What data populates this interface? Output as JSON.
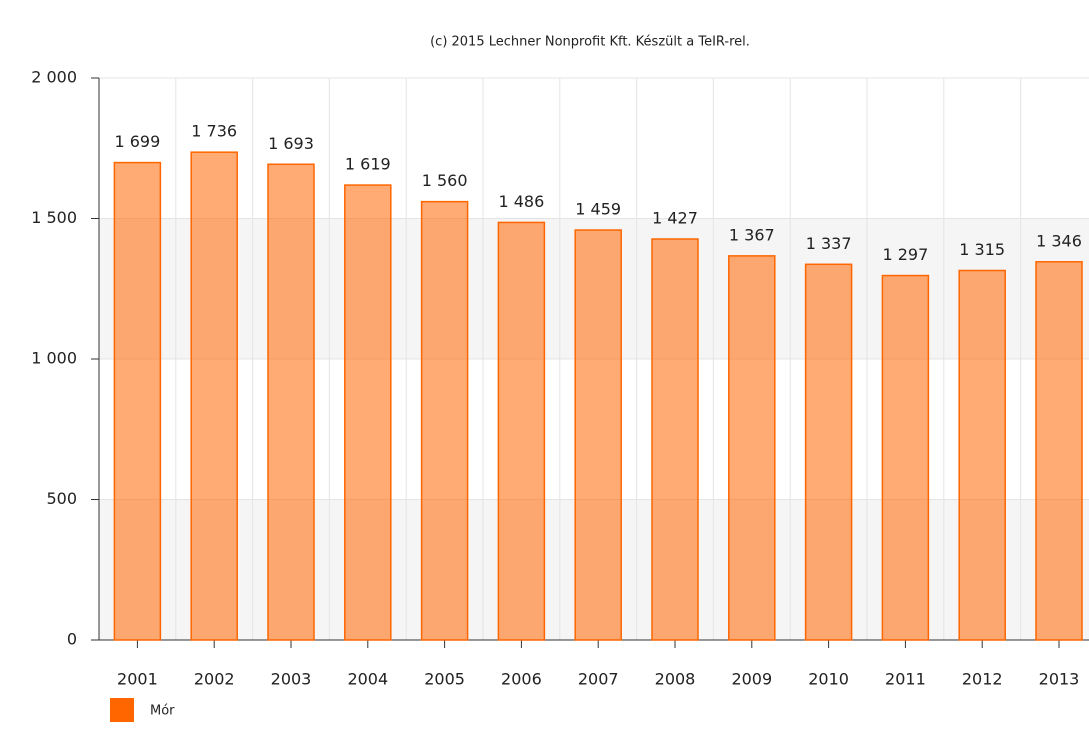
{
  "chart_data": {
    "type": "bar",
    "title": "(c) 2015 Lechner Nonprofit Kft. Készült a TeIR-rel.",
    "categories": [
      "2001",
      "2002",
      "2003",
      "2004",
      "2005",
      "2006",
      "2007",
      "2008",
      "2009",
      "2010",
      "2011",
      "2012",
      "2013"
    ],
    "series": [
      {
        "name": "Mór",
        "color": "#ff6600",
        "values": [
          1699,
          1736,
          1693,
          1619,
          1560,
          1486,
          1459,
          1427,
          1367,
          1337,
          1297,
          1315,
          1346
        ],
        "value_labels": [
          "1 699",
          "1 736",
          "1 693",
          "1 619",
          "1 560",
          "1 486",
          "1 459",
          "1 427",
          "1 367",
          "1 337",
          "1 297",
          "1 315",
          "1 346"
        ]
      }
    ],
    "ylim": [
      0,
      2000
    ],
    "yticks": [
      0,
      500,
      {
        "value": 1000,
        "label": "1 000"
      },
      {
        "value": 1500,
        "label": "1 500"
      },
      {
        "value": 2000,
        "label": "2 000"
      }
    ],
    "grid": true
  }
}
